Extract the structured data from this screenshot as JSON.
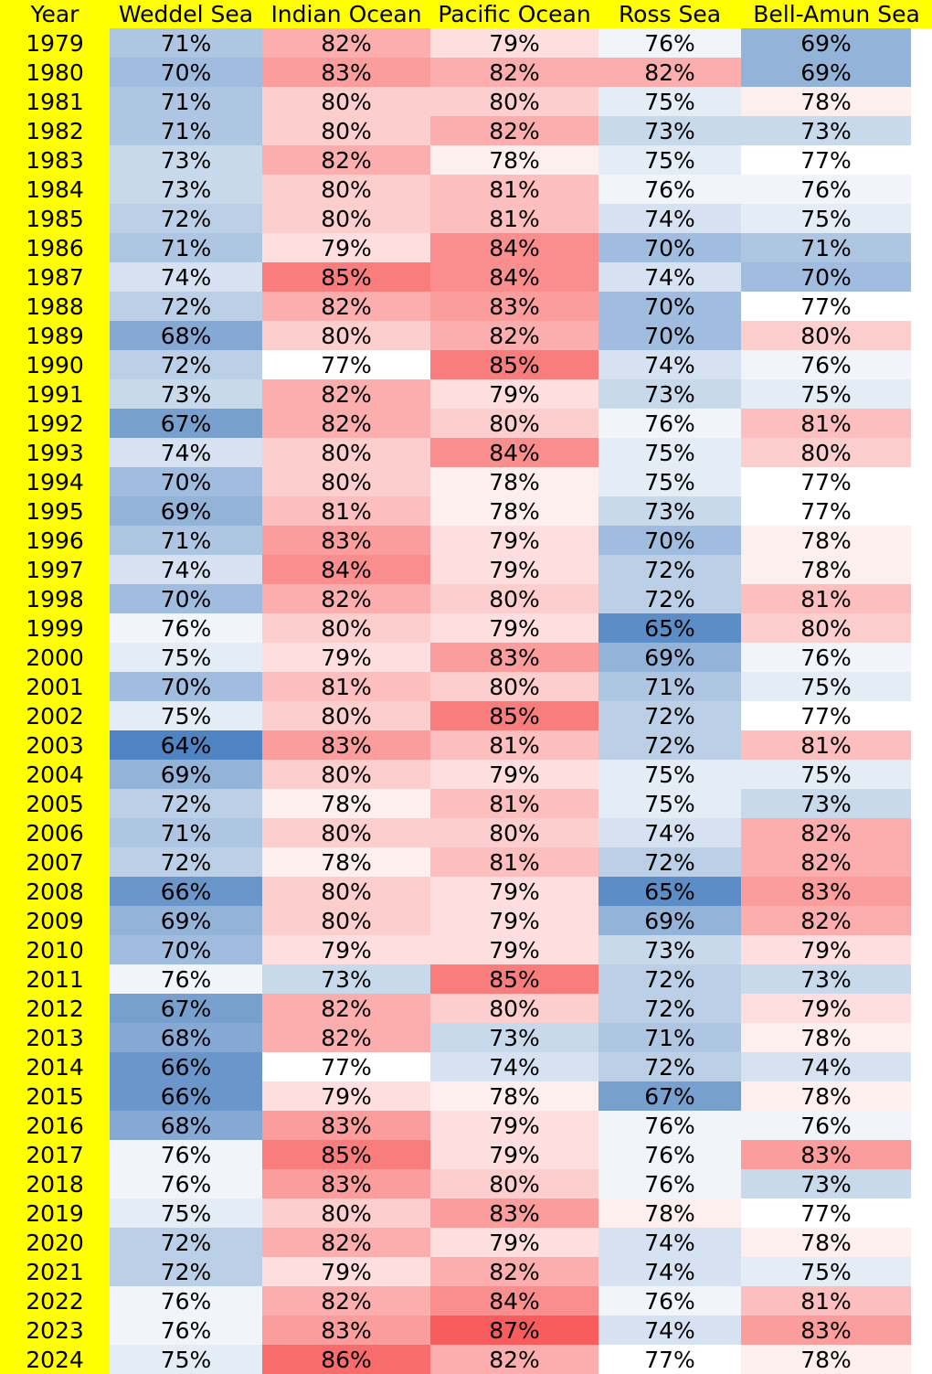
{
  "colors": {
    "header_background": "#ffff00",
    "year_column_background": "#ffff00",
    "low_color": "#4f83c1",
    "mid_color": "#ffffff",
    "high_color": "#f85c5c"
  },
  "chart_data": {
    "type": "heatmap",
    "corner_label": "Year",
    "columns": [
      "Weddel Sea",
      "Indian Ocean",
      "Pacific Ocean",
      "Ross Sea",
      "Bell-Amun Sea"
    ],
    "rows": [
      "1979",
      "1980",
      "1981",
      "1982",
      "1983",
      "1984",
      "1985",
      "1986",
      "1987",
      "1988",
      "1989",
      "1990",
      "1991",
      "1992",
      "1993",
      "1994",
      "1995",
      "1996",
      "1997",
      "1998",
      "1999",
      "2000",
      "2001",
      "2002",
      "2003",
      "2004",
      "2005",
      "2006",
      "2007",
      "2008",
      "2009",
      "2010",
      "2011",
      "2012",
      "2013",
      "2014",
      "2015",
      "2016",
      "2017",
      "2018",
      "2019",
      "2020",
      "2021",
      "2022",
      "2023",
      "2024"
    ],
    "values": [
      [
        71,
        82,
        79,
        76,
        69
      ],
      [
        70,
        83,
        82,
        82,
        69
      ],
      [
        71,
        80,
        80,
        75,
        78
      ],
      [
        71,
        80,
        82,
        73,
        73
      ],
      [
        73,
        82,
        78,
        75,
        77
      ],
      [
        73,
        80,
        81,
        76,
        76
      ],
      [
        72,
        80,
        81,
        74,
        75
      ],
      [
        71,
        79,
        84,
        70,
        71
      ],
      [
        74,
        85,
        84,
        74,
        70
      ],
      [
        72,
        82,
        83,
        70,
        77
      ],
      [
        68,
        80,
        82,
        70,
        80
      ],
      [
        72,
        77,
        85,
        74,
        76
      ],
      [
        73,
        82,
        79,
        73,
        75
      ],
      [
        67,
        82,
        80,
        76,
        81
      ],
      [
        74,
        80,
        84,
        75,
        80
      ],
      [
        70,
        80,
        78,
        75,
        77
      ],
      [
        69,
        81,
        78,
        73,
        77
      ],
      [
        71,
        83,
        79,
        70,
        78
      ],
      [
        74,
        84,
        79,
        72,
        78
      ],
      [
        70,
        82,
        80,
        72,
        81
      ],
      [
        76,
        80,
        79,
        65,
        80
      ],
      [
        75,
        79,
        83,
        69,
        76
      ],
      [
        70,
        81,
        80,
        71,
        75
      ],
      [
        75,
        80,
        85,
        72,
        77
      ],
      [
        64,
        83,
        81,
        72,
        81
      ],
      [
        69,
        80,
        79,
        75,
        75
      ],
      [
        72,
        78,
        81,
        75,
        73
      ],
      [
        71,
        80,
        80,
        74,
        82
      ],
      [
        72,
        78,
        81,
        72,
        82
      ],
      [
        66,
        80,
        79,
        65,
        83
      ],
      [
        69,
        80,
        79,
        69,
        82
      ],
      [
        70,
        79,
        79,
        73,
        79
      ],
      [
        76,
        73,
        85,
        72,
        73
      ],
      [
        67,
        82,
        80,
        72,
        79
      ],
      [
        68,
        82,
        73,
        71,
        78
      ],
      [
        66,
        77,
        74,
        72,
        74
      ],
      [
        66,
        79,
        78,
        67,
        78
      ],
      [
        68,
        83,
        79,
        76,
        76
      ],
      [
        76,
        85,
        79,
        76,
        83
      ],
      [
        76,
        83,
        80,
        76,
        73
      ],
      [
        75,
        80,
        83,
        78,
        77
      ],
      [
        72,
        82,
        79,
        74,
        78
      ],
      [
        72,
        79,
        82,
        74,
        75
      ],
      [
        76,
        82,
        84,
        76,
        81
      ],
      [
        76,
        83,
        87,
        74,
        83
      ],
      [
        75,
        86,
        82,
        77,
        78
      ]
    ],
    "value_suffix": "%",
    "color_scale": {
      "type": "diverging",
      "min": 64,
      "center": 77,
      "max": 87
    }
  }
}
